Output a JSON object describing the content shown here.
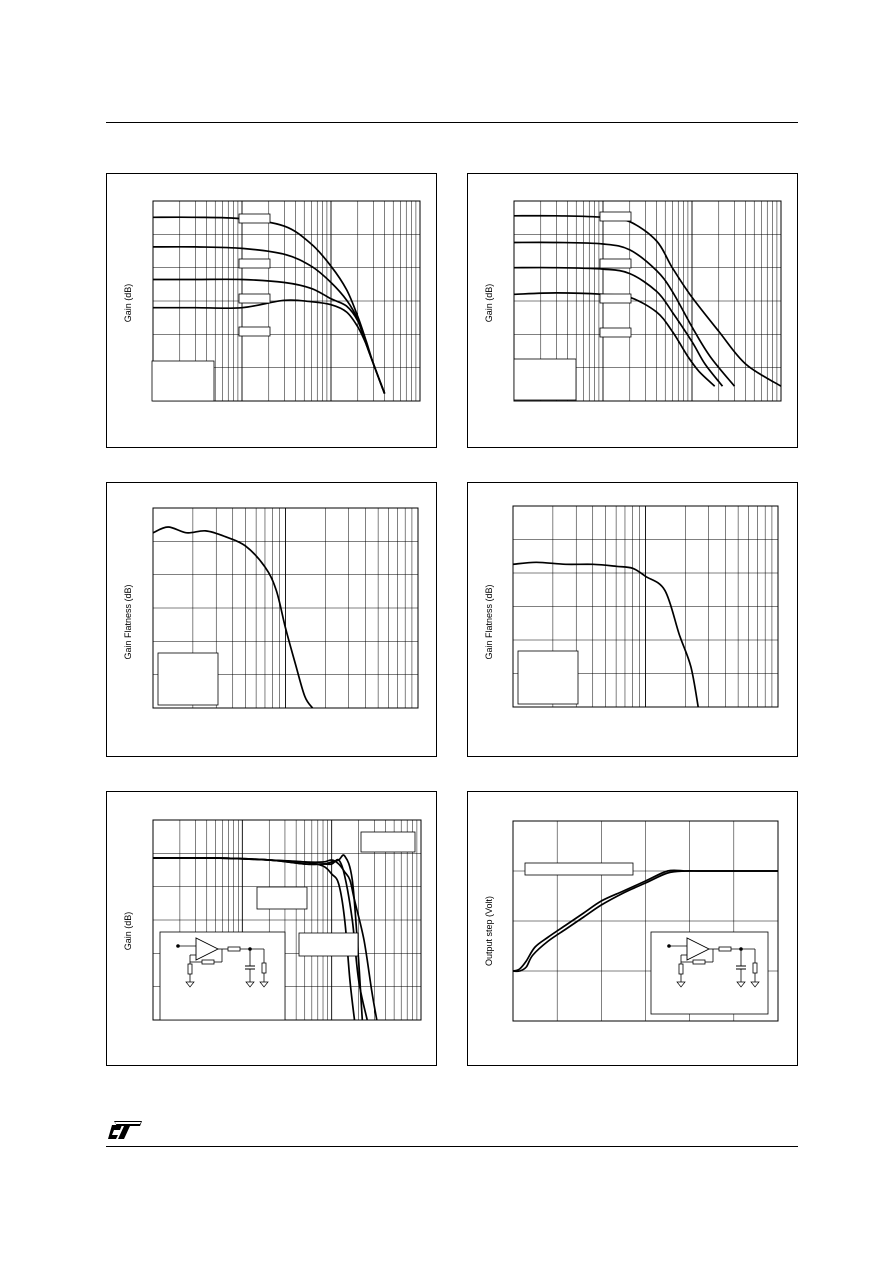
{
  "page": {
    "header_rule": true,
    "footer_rule": true,
    "logo_name": "st-logo"
  },
  "chart_data": [
    {
      "id": "gain-vs-frequency-1",
      "type": "line",
      "ylabel": "Gain (dB)",
      "x_scale": "log",
      "x_decades": 3,
      "grid": true,
      "label_boxes": 4,
      "legend_box": "bottom-left",
      "series": [
        {
          "x": [
            1,
            3,
            10,
            30,
            60,
            100,
            150,
            200,
            250,
            300,
            400
          ],
          "y": [
            0.94,
            0.94,
            0.93,
            0.88,
            0.76,
            0.61,
            0.45,
            0.27,
            0.1,
            -0.05,
            -0.25
          ]
        },
        {
          "x": [
            1,
            3,
            10,
            30,
            60,
            100,
            150,
            200,
            250,
            300,
            400
          ],
          "y": [
            0.74,
            0.74,
            0.73,
            0.69,
            0.61,
            0.5,
            0.38,
            0.25,
            0.08,
            -0.05,
            -0.25
          ]
        },
        {
          "x": [
            1,
            3,
            10,
            30,
            60,
            100,
            150,
            200,
            250,
            300,
            400
          ],
          "y": [
            0.52,
            0.52,
            0.52,
            0.5,
            0.46,
            0.39,
            0.34,
            0.24,
            0.08,
            -0.05,
            -0.25
          ]
        },
        {
          "x": [
            1,
            3,
            10,
            30,
            60,
            100,
            150,
            200,
            250,
            300,
            400
          ],
          "y": [
            0.33,
            0.33,
            0.33,
            0.38,
            0.37,
            0.35,
            0.3,
            0.2,
            0.08,
            -0.05,
            -0.25
          ]
        }
      ]
    },
    {
      "id": "gain-vs-frequency-2",
      "type": "line",
      "ylabel": "Gain (dB)",
      "x_scale": "log",
      "x_decades": 3,
      "grid": true,
      "label_boxes": 4,
      "legend_box": "bottom-left",
      "series": [
        {
          "x": [
            1,
            3,
            10,
            20,
            40,
            60,
            100,
            200,
            400,
            1000
          ],
          "y": [
            0.95,
            0.95,
            0.94,
            0.91,
            0.78,
            0.6,
            0.4,
            0.17,
            -0.05,
            -0.2
          ]
        },
        {
          "x": [
            1,
            3,
            10,
            20,
            40,
            60,
            100,
            160,
            300
          ],
          "y": [
            0.77,
            0.77,
            0.76,
            0.72,
            0.58,
            0.44,
            0.2,
            0.0,
            -0.2
          ]
        },
        {
          "x": [
            1,
            3,
            10,
            20,
            40,
            60,
            100,
            140,
            220
          ],
          "y": [
            0.6,
            0.6,
            0.59,
            0.56,
            0.44,
            0.3,
            0.1,
            -0.05,
            -0.2
          ]
        },
        {
          "x": [
            1,
            3,
            10,
            20,
            40,
            60,
            90,
            120,
            180
          ],
          "y": [
            0.42,
            0.43,
            0.42,
            0.4,
            0.3,
            0.17,
            0.0,
            -0.1,
            -0.2
          ]
        }
      ]
    },
    {
      "id": "gain-flatness-1",
      "type": "line",
      "ylabel": "Gain Flatness (dB)",
      "x_scale": "log",
      "x_decades": 2,
      "grid": true,
      "legend_box": "bottom-left",
      "series": [
        {
          "x": [
            1,
            1.3,
            1.8,
            2.5,
            3.5,
            5,
            7,
            8.5,
            10,
            12,
            14,
            16
          ],
          "y": [
            0.92,
            0.95,
            0.92,
            0.93,
            0.9,
            0.85,
            0.74,
            0.62,
            0.42,
            0.22,
            0.06,
            0.0
          ]
        }
      ]
    },
    {
      "id": "gain-flatness-2",
      "type": "line",
      "ylabel": "Gain Flatness (dB)",
      "x_scale": "log",
      "x_decades": 2,
      "grid": true,
      "legend_box": "bottom-left",
      "series": [
        {
          "x": [
            1,
            1.5,
            2.5,
            4,
            6,
            8,
            10,
            14,
            18,
            22,
            25
          ],
          "y": [
            0.71,
            0.72,
            0.71,
            0.71,
            0.7,
            0.69,
            0.65,
            0.58,
            0.36,
            0.2,
            0.0
          ]
        }
      ]
    },
    {
      "id": "gain-vs-frequency-3",
      "type": "line",
      "ylabel": "Gain (dB)",
      "x_scale": "log",
      "x_decades": 3,
      "grid": true,
      "label_boxes": 3,
      "inset": "schematic",
      "series": [
        {
          "x": [
            1,
            5,
            20,
            50,
            80,
            100,
            120,
            140,
            170,
            200,
            220
          ],
          "y": [
            0.81,
            0.81,
            0.8,
            0.78,
            0.78,
            0.79,
            0.8,
            0.82,
            0.7,
            0.3,
            0.0
          ]
        },
        {
          "x": [
            1,
            5,
            20,
            50,
            80,
            100,
            120,
            140,
            170,
            200,
            250
          ],
          "y": [
            0.81,
            0.81,
            0.8,
            0.78,
            0.78,
            0.78,
            0.8,
            0.72,
            0.5,
            0.2,
            0.0
          ]
        },
        {
          "x": [
            1,
            5,
            20,
            50,
            80,
            100,
            120,
            140,
            160,
            180
          ],
          "y": [
            0.81,
            0.81,
            0.8,
            0.79,
            0.77,
            0.73,
            0.68,
            0.5,
            0.2,
            0.0
          ]
        },
        {
          "x": [
            1,
            5,
            20,
            50,
            80,
            100,
            120,
            140,
            160,
            180,
            230,
            280,
            320
          ],
          "y": [
            0.81,
            0.81,
            0.8,
            0.79,
            0.79,
            0.8,
            0.78,
            0.74,
            0.7,
            0.6,
            0.4,
            0.15,
            0.0
          ]
        }
      ]
    },
    {
      "id": "output-step",
      "type": "line",
      "ylabel": "Output step (Volt)",
      "x_scale": "linear",
      "xlim": [
        0,
        6
      ],
      "ylim": [
        0,
        1
      ],
      "grid": true,
      "label_boxes": 1,
      "inset": "schematic",
      "series": [
        {
          "x": [
            0,
            0.15,
            0.3,
            0.5,
            0.8,
            1.2,
            1.6,
            2.0,
            2.5,
            3.0,
            3.5,
            3.9,
            4.2,
            4.5,
            5,
            5.5,
            6
          ],
          "y": [
            0.25,
            0.26,
            0.3,
            0.37,
            0.42,
            0.48,
            0.54,
            0.6,
            0.65,
            0.7,
            0.75,
            0.75,
            0.75,
            0.75,
            0.75,
            0.75,
            0.75
          ]
        },
        {
          "x": [
            0,
            0.15,
            0.3,
            0.45,
            0.8,
            1.2,
            1.6,
            2.0,
            2.5,
            3.0,
            3.5,
            3.9,
            4.2,
            4.5,
            5,
            5.5,
            6
          ],
          "y": [
            0.25,
            0.25,
            0.27,
            0.33,
            0.4,
            0.46,
            0.52,
            0.58,
            0.64,
            0.69,
            0.74,
            0.75,
            0.75,
            0.75,
            0.75,
            0.75,
            0.75
          ]
        }
      ]
    }
  ]
}
